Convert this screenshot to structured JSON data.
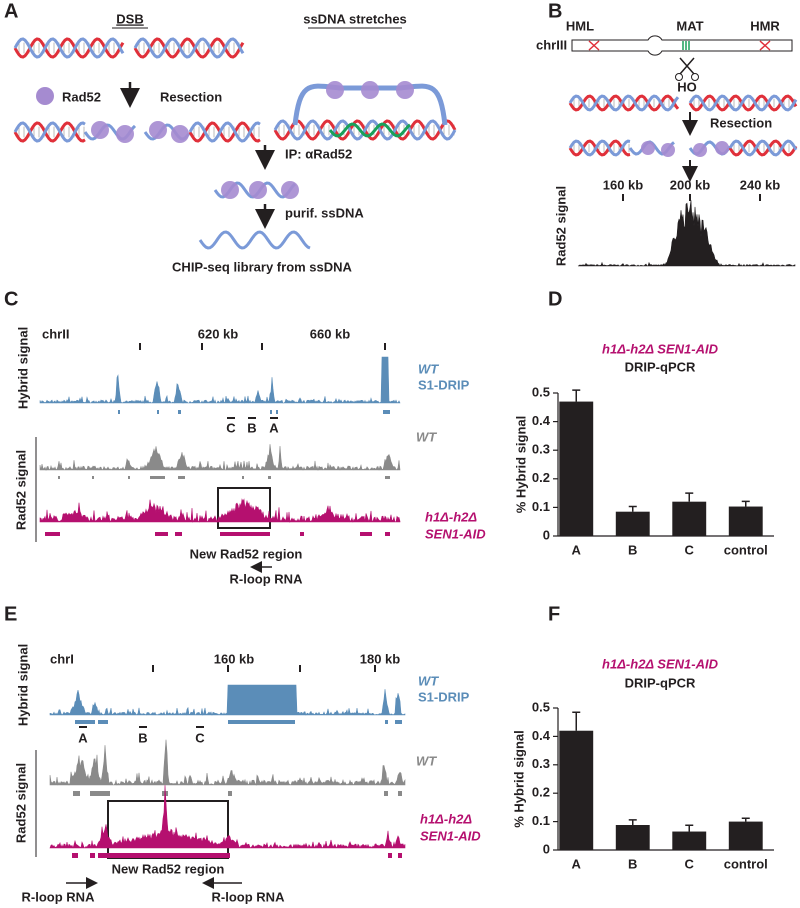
{
  "panels": {
    "A": {
      "label": "A",
      "dsb": "DSB",
      "ss": "ssDNA stretches",
      "rad52": "Rad52",
      "resection": "Resection",
      "ip": "IP: αRad52",
      "purif": "purif. ssDNA",
      "library": "CHIP-seq library from ssDNA"
    },
    "B": {
      "label": "B",
      "hml": "HML",
      "mat": "MAT",
      "hmr": "HMR",
      "chr": "chrIII",
      "ho": "HO",
      "resection": "Resection",
      "ticks": [
        "160 kb",
        "200 kb",
        "240 kb"
      ],
      "signal": "Rad52 signal"
    },
    "C": {
      "label": "C",
      "hybrid": "Hybrid signal",
      "chr": "chrII",
      "ticks": [
        "620 kb",
        "660 kb"
      ],
      "wt1": "WT",
      "drip": "S1-DRIP",
      "regions": [
        "C",
        "B",
        "A"
      ],
      "signal": "Rad52 signal",
      "wt2": "WT",
      "mut1": "h1Δ-h2Δ",
      "mut2": "SEN1-AID",
      "new": "New Rad52 region",
      "rloop": "R-loop RNA"
    },
    "E": {
      "label": "E",
      "hybrid": "Hybrid signal",
      "chr": "chrI",
      "ticks": [
        "160 kb",
        "180 kb"
      ],
      "wt1": "WT",
      "drip": "S1-DRIP",
      "regions": [
        "A",
        "B",
        "C"
      ],
      "signal": "Rad52 signal",
      "wt2": "WT",
      "mut1": "h1Δ-h2Δ",
      "mut2": "SEN1-AID",
      "new": "New Rad52 region",
      "rloop1": "R-loop RNA",
      "rloop2": "R-loop RNA"
    }
  },
  "chart_data": [
    {
      "type": "bar",
      "panel_label": "D",
      "title": "h1Δ-h2Δ SEN1-AID",
      "subtitle": "DRIP-qPCR",
      "ylabel": "% Hybrid signal",
      "categories": [
        "A",
        "B",
        "C",
        "control"
      ],
      "values": [
        0.47,
        0.085,
        0.12,
        0.103
      ],
      "errors": [
        0.04,
        0.018,
        0.03,
        0.018
      ],
      "color": "#231f20",
      "ylim": [
        0,
        0.5
      ],
      "yticks": [
        0,
        0.1,
        0.2,
        0.3,
        0.4,
        0.5
      ]
    },
    {
      "type": "bar",
      "panel_label": "F",
      "title": "h1Δ-h2Δ SEN1-AID",
      "subtitle": "DRIP-qPCR",
      "ylabel": "% Hybrid signal",
      "categories": [
        "A",
        "B",
        "C",
        "control"
      ],
      "values": [
        0.42,
        0.088,
        0.065,
        0.1
      ],
      "errors": [
        0.065,
        0.018,
        0.022,
        0.012
      ],
      "color": "#231f20",
      "ylim": [
        0,
        0.5
      ],
      "yticks": [
        0,
        0.1,
        0.2,
        0.3,
        0.4,
        0.5
      ]
    }
  ]
}
